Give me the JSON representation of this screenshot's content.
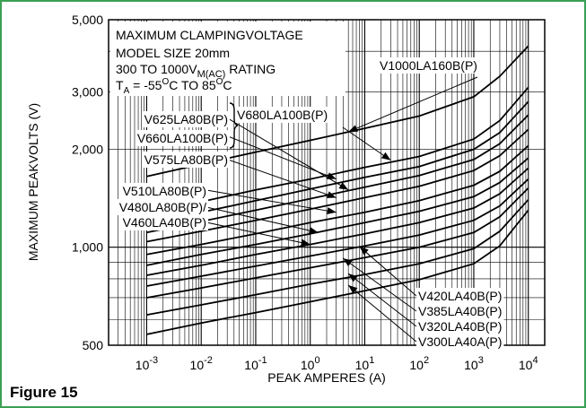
{
  "figure_label": "Figure 15",
  "chart_data": {
    "type": "line",
    "x_scale": "log",
    "y_scale": "log",
    "grid": true,
    "xlabel": "PEAK AMPERES (A)",
    "ylabel": "MAXIMUM PEAKVOLTS (V)",
    "xlim": [
      0.0002,
      20000
    ],
    "ylim": [
      500,
      5000
    ],
    "x_ticks": [
      {
        "value": 0.001,
        "base": "10",
        "exp": "-3"
      },
      {
        "value": 0.01,
        "base": "10",
        "exp": "-2"
      },
      {
        "value": 0.1,
        "base": "10",
        "exp": "-1"
      },
      {
        "value": 1,
        "base": "10",
        "exp": "0"
      },
      {
        "value": 10,
        "base": "10",
        "exp": "1"
      },
      {
        "value": 100,
        "base": "10",
        "exp": "2"
      },
      {
        "value": 1000,
        "base": "10",
        "exp": "3"
      },
      {
        "value": 10000,
        "base": "10",
        "exp": "4"
      }
    ],
    "y_ticks": [
      {
        "value": 500,
        "label": "500"
      },
      {
        "value": 1000,
        "label": "1,000"
      },
      {
        "value": 2000,
        "label": "2,000"
      },
      {
        "value": 3000,
        "label": "3,000"
      },
      {
        "value": 5000,
        "label": "5,000"
      }
    ],
    "annotation": {
      "line1": "MAXIMUM CLAMPINGVOLTAGE",
      "line2": "MODEL SIZE 20mm",
      "line3_pre": "300 TO 1000V",
      "line3_sub": "M(AC)",
      "line3_post": " RATING",
      "line4_a": "T",
      "line4_a_sub": "A",
      "line4_b": " = -55",
      "line4_sup1": "O",
      "line4_c": "C TO 85",
      "line4_sup2": "O",
      "line4_d": "C"
    },
    "series": [
      {
        "name": "V1000LA160B(P)",
        "x": [
          0.001,
          0.01,
          0.1,
          1,
          10,
          100,
          1000,
          3000,
          10000
        ],
        "y": [
          1650,
          1800,
          1960,
          2130,
          2320,
          2530,
          2900,
          3350,
          4150
        ]
      },
      {
        "name": "V680LA100B(P)",
        "x": [
          0.001,
          0.01,
          0.1,
          1,
          10,
          100,
          1000,
          3000,
          10000
        ],
        "y": [
          1270,
          1380,
          1500,
          1620,
          1760,
          1900,
          2150,
          2450,
          3100
        ]
      },
      {
        "name": "V660LA100B(P)",
        "x": [
          0.001,
          0.01,
          0.1,
          1,
          10,
          100,
          1000,
          3000,
          10000
        ],
        "y": [
          1180,
          1280,
          1390,
          1510,
          1640,
          1770,
          2000,
          2250,
          2800
        ]
      },
      {
        "name": "V625LA80B(P)",
        "x": [
          0.001,
          0.01,
          0.1,
          1,
          10,
          100,
          1000,
          3000,
          10000
        ],
        "y": [
          1110,
          1200,
          1300,
          1410,
          1530,
          1660,
          1860,
          2080,
          2550
        ]
      },
      {
        "name": "V575LA80B(P)",
        "x": [
          0.001,
          0.01,
          0.1,
          1,
          10,
          100,
          1000,
          3000,
          10000
        ],
        "y": [
          1040,
          1120,
          1210,
          1310,
          1420,
          1540,
          1720,
          1910,
          2300
        ]
      },
      {
        "name": "V510LA80B(P)",
        "x": [
          0.001,
          0.01,
          0.1,
          1,
          10,
          100,
          1000,
          3000,
          10000
        ],
        "y": [
          950,
          1020,
          1100,
          1190,
          1280,
          1390,
          1550,
          1710,
          2050
        ]
      },
      {
        "name": "V480LA80B(P)/",
        "x": [
          0.001,
          0.01,
          0.1,
          1,
          10,
          100,
          1000,
          3000,
          10000
        ],
        "y": [
          880,
          950,
          1020,
          1100,
          1190,
          1290,
          1430,
          1580,
          1880
        ]
      },
      {
        "name": "V460LA40B(P)",
        "x": [
          0.001,
          0.01,
          0.1,
          1,
          10,
          100,
          1000,
          3000,
          10000
        ],
        "y": [
          820,
          880,
          950,
          1020,
          1100,
          1190,
          1320,
          1460,
          1750
        ]
      },
      {
        "name": "V420LA40B(P)",
        "x": [
          0.001,
          0.01,
          0.1,
          1,
          10,
          100,
          1000,
          3000,
          10000
        ],
        "y": [
          760,
          815,
          875,
          940,
          1010,
          1090,
          1210,
          1340,
          1620
        ]
      },
      {
        "name": "V385LA40B(P)",
        "x": [
          0.001,
          0.01,
          0.1,
          1,
          10,
          100,
          1000,
          3000,
          10000
        ],
        "y": [
          700,
          750,
          805,
          865,
          930,
          1000,
          1110,
          1240,
          1520
        ]
      },
      {
        "name": "V320LA40B(P)",
        "x": [
          0.001,
          0.01,
          0.1,
          1,
          10,
          100,
          1000,
          3000,
          10000
        ],
        "y": [
          620,
          665,
          715,
          770,
          825,
          890,
          990,
          1120,
          1400
        ]
      },
      {
        "name": "V300LA40A(P)",
        "x": [
          0.001,
          0.01,
          0.1,
          1,
          10,
          100,
          1000,
          3000,
          10000
        ],
        "y": [
          540,
          585,
          630,
          680,
          735,
          795,
          890,
          1010,
          1300
        ]
      }
    ]
  }
}
